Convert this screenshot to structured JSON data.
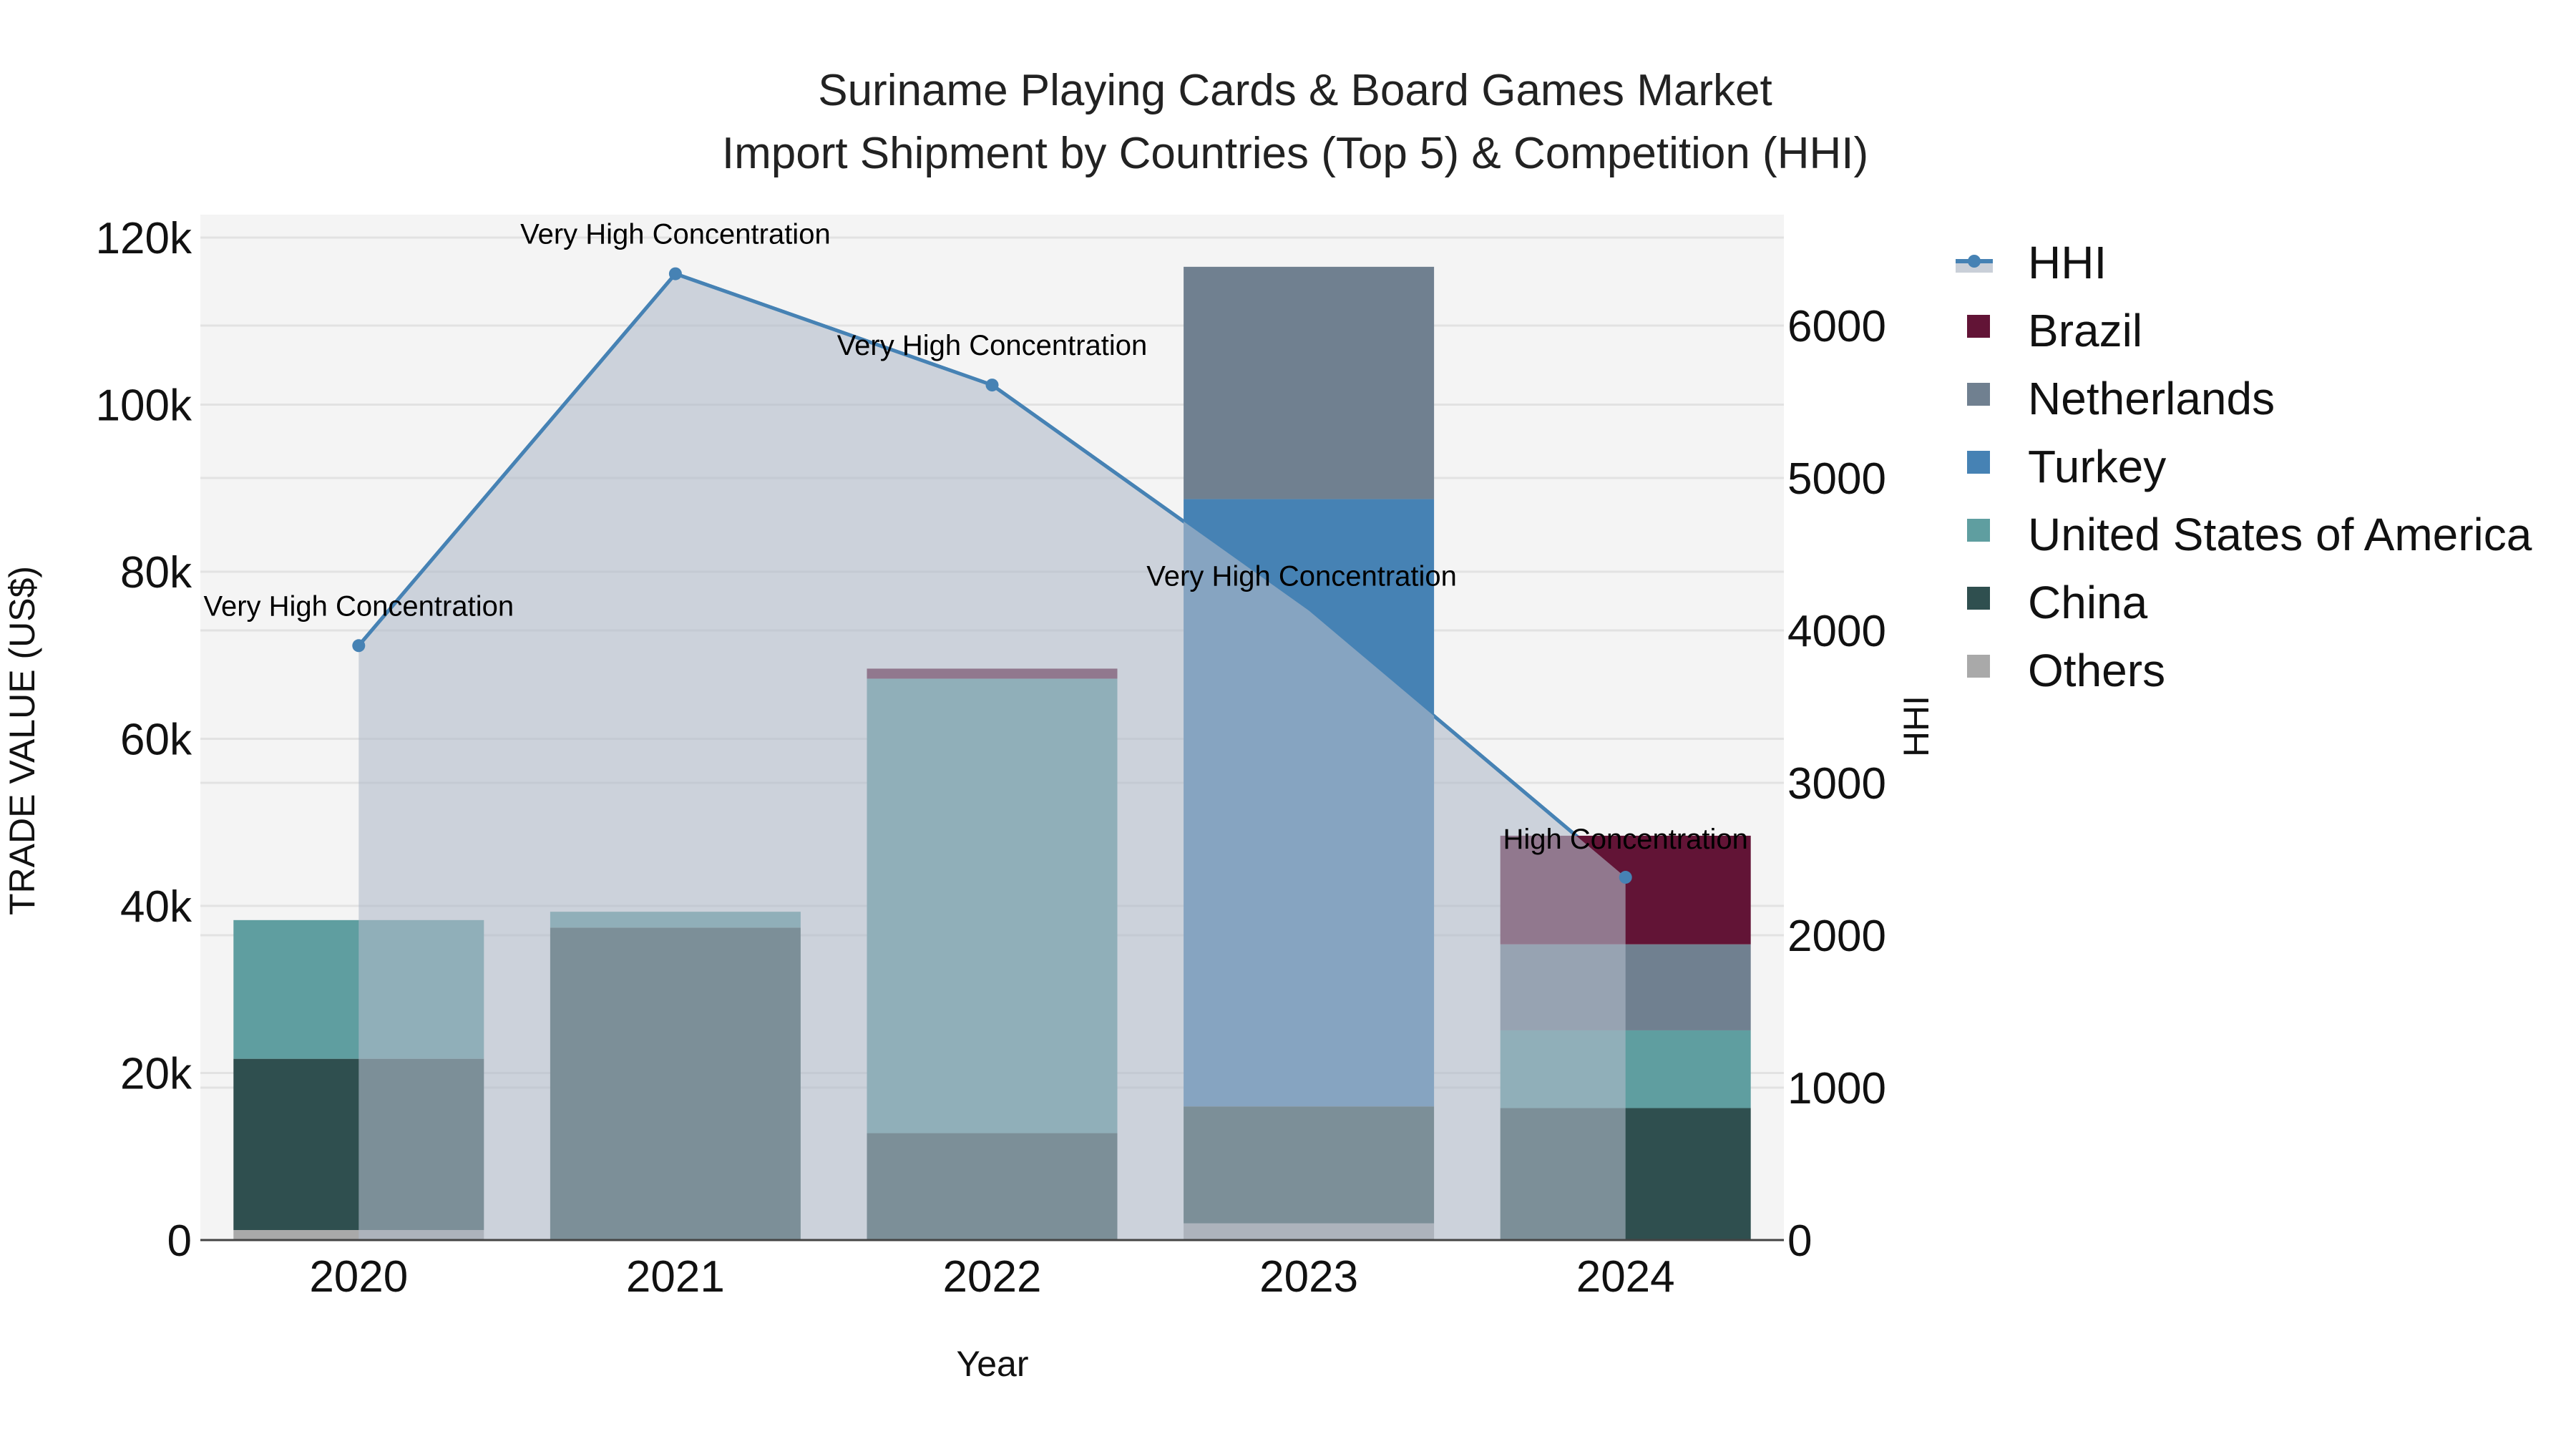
{
  "title": {
    "line1": "Suriname Playing Cards & Board Games Market",
    "line2": "Import Shipment by Countries (Top 5) & Competition (HHI)"
  },
  "axes": {
    "x_title": "Year",
    "y_left_title": "TRADE VALUE (US$)",
    "y_right_title": "HHI",
    "y_left_ticks": [
      "0",
      "20k",
      "40k",
      "60k",
      "80k",
      "100k",
      "120k"
    ],
    "y_right_ticks": [
      "0",
      "1000",
      "2000",
      "3000",
      "4000",
      "5000",
      "6000"
    ],
    "x_ticks": [
      "2020",
      "2021",
      "2022",
      "2023",
      "2024"
    ]
  },
  "legend": {
    "items": [
      {
        "label": "HHI",
        "color": "#4682b4",
        "kind": "line"
      },
      {
        "label": "Brazil",
        "color": "#621436",
        "kind": "box"
      },
      {
        "label": "Netherlands",
        "color": "#708090",
        "kind": "box"
      },
      {
        "label": "Turkey",
        "color": "#4682b4",
        "kind": "box"
      },
      {
        "label": "United States of America",
        "color": "#5f9ea0",
        "kind": "box"
      },
      {
        "label": "China",
        "color": "#2f4f4f",
        "kind": "box"
      },
      {
        "label": "Others",
        "color": "#a9a9a9",
        "kind": "box"
      }
    ]
  },
  "annotations": [
    {
      "year": "2020",
      "text": "Very High Concentration"
    },
    {
      "year": "2021",
      "text": "Very High Concentration"
    },
    {
      "year": "2022",
      "text": "Very High Concentration"
    },
    {
      "year": "2023",
      "text": "Very High Concentration"
    },
    {
      "year": "2024",
      "text": "High Concentration"
    }
  ],
  "chart_data": {
    "type": "bar",
    "title": "Suriname Playing Cards & Board Games Market Import Shipment by Countries (Top 5) & Competition (HHI)",
    "xlabel": "Year",
    "ylabel": "TRADE VALUE (US$)",
    "y2label": "HHI",
    "categories": [
      "2020",
      "2021",
      "2022",
      "2023",
      "2024"
    ],
    "stacked": true,
    "ylim": [
      0,
      120000
    ],
    "y2lim": [
      0,
      6500
    ],
    "grid": true,
    "legend_position": "right",
    "series": [
      {
        "name": "Others",
        "color": "#a9a9a9",
        "values": [
          1200,
          0,
          0,
          2000,
          0
        ]
      },
      {
        "name": "China",
        "color": "#2f4f4f",
        "values": [
          20500,
          37400,
          12800,
          14000,
          15800
        ]
      },
      {
        "name": "United States of America",
        "color": "#5f9ea0",
        "values": [
          16600,
          1900,
          54400,
          0,
          9300
        ]
      },
      {
        "name": "Turkey",
        "color": "#4682b4",
        "values": [
          0,
          0,
          0,
          72700,
          0
        ]
      },
      {
        "name": "Netherlands",
        "color": "#708090",
        "values": [
          0,
          0,
          0,
          27800,
          10300
        ]
      },
      {
        "name": "Brazil",
        "color": "#621436",
        "values": [
          0,
          0,
          1200,
          0,
          13000
        ]
      }
    ],
    "line_series": {
      "name": "HHI",
      "axis": "right",
      "color": "#4682b4",
      "values": [
        3900,
        6340,
        5610,
        4130,
        2380
      ],
      "labels": [
        "Very High Concentration",
        "Very High Concentration",
        "Very High Concentration",
        "Very High Concentration",
        "High Concentration"
      ]
    }
  }
}
